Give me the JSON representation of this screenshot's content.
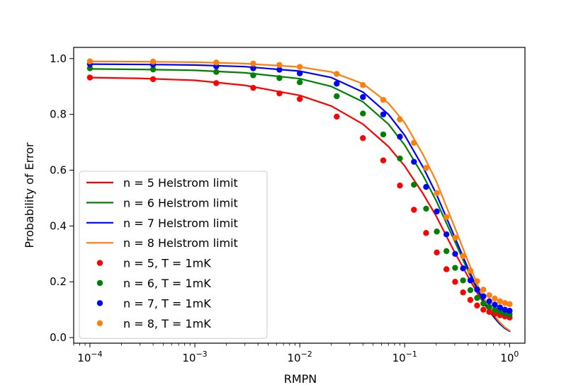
{
  "chart_data": {
    "type": "line",
    "xlabel": "RMPN",
    "ylabel": "Probability of Error",
    "xscale": "log",
    "xlim": [
      7e-05,
      1.4
    ],
    "ylim": [
      -0.02,
      1.04
    ],
    "grid": false,
    "legend_position": "lower-left",
    "x_ticks": [
      {
        "value": 0.0001,
        "base": "10",
        "exp": "−4"
      },
      {
        "value": 0.001,
        "base": "10",
        "exp": "−3"
      },
      {
        "value": 0.01,
        "base": "10",
        "exp": "−2"
      },
      {
        "value": 0.1,
        "base": "10",
        "exp": "−1"
      },
      {
        "value": 1,
        "base": "10",
        "exp": "0"
      }
    ],
    "y_ticks": [
      {
        "value": 0.0,
        "label": "0.0"
      },
      {
        "value": 0.2,
        "label": "0.2"
      },
      {
        "value": 0.4,
        "label": "0.4"
      },
      {
        "value": 0.6,
        "label": "0.6"
      },
      {
        "value": 0.8,
        "label": "0.8"
      },
      {
        "value": 1.0,
        "label": "1.0"
      }
    ],
    "line_series": [
      {
        "name": "n = 5 Helstrom limit",
        "color": "#ff0000",
        "x": [
          0.0001,
          0.0003,
          0.001,
          0.003,
          0.01,
          0.02,
          0.04,
          0.07,
          0.1,
          0.15,
          0.2,
          0.3,
          0.4,
          0.5,
          0.6,
          0.7,
          0.8,
          0.9,
          1.0
        ],
        "y": [
          0.932,
          0.929,
          0.922,
          0.904,
          0.868,
          0.83,
          0.765,
          0.685,
          0.615,
          0.515,
          0.435,
          0.305,
          0.22,
          0.155,
          0.11,
          0.075,
          0.05,
          0.035,
          0.025
        ]
      },
      {
        "name": "n = 6 Helstrom limit",
        "color": "#008000",
        "x": [
          0.0001,
          0.0003,
          0.001,
          0.003,
          0.01,
          0.02,
          0.04,
          0.07,
          0.1,
          0.15,
          0.2,
          0.3,
          0.4,
          0.5,
          0.6,
          0.7,
          0.8,
          0.9,
          1.0
        ],
        "y": [
          0.963,
          0.961,
          0.958,
          0.949,
          0.928,
          0.9,
          0.845,
          0.765,
          0.69,
          0.58,
          0.49,
          0.345,
          0.24,
          0.165,
          0.11,
          0.075,
          0.05,
          0.033,
          0.023
        ]
      },
      {
        "name": "n = 7 Helstrom limit",
        "color": "#0000ff",
        "x": [
          0.0001,
          0.0003,
          0.001,
          0.003,
          0.01,
          0.02,
          0.04,
          0.07,
          0.1,
          0.15,
          0.2,
          0.3,
          0.4,
          0.5,
          0.6,
          0.7,
          0.8,
          0.9,
          1.0
        ],
        "y": [
          0.98,
          0.979,
          0.977,
          0.971,
          0.955,
          0.932,
          0.88,
          0.8,
          0.725,
          0.61,
          0.515,
          0.36,
          0.25,
          0.17,
          0.115,
          0.078,
          0.052,
          0.034,
          0.023
        ]
      },
      {
        "name": "n = 8 Helstrom limit",
        "color": "#ff7f0e",
        "x": [
          0.0001,
          0.0003,
          0.001,
          0.003,
          0.01,
          0.02,
          0.04,
          0.07,
          0.1,
          0.15,
          0.2,
          0.3,
          0.4,
          0.5,
          0.6,
          0.7,
          0.8,
          0.9,
          1.0
        ],
        "y": [
          0.99,
          0.989,
          0.987,
          0.982,
          0.97,
          0.952,
          0.91,
          0.84,
          0.77,
          0.655,
          0.56,
          0.395,
          0.275,
          0.185,
          0.125,
          0.085,
          0.056,
          0.037,
          0.025
        ]
      }
    ],
    "scatter_series": [
      {
        "name": "n = 5, T = 1mK",
        "color": "#ff0000",
        "x": [
          0.0001,
          0.0004,
          0.0016,
          0.0036,
          0.0064,
          0.01,
          0.0225,
          0.04,
          0.0625,
          0.09,
          0.1225,
          0.16,
          0.2025,
          0.25,
          0.3025,
          0.36,
          0.4225,
          0.49,
          0.5625,
          0.64,
          0.7225,
          0.81,
          0.9025,
          1.0
        ],
        "y": [
          0.932,
          0.926,
          0.912,
          0.895,
          0.875,
          0.855,
          0.792,
          0.715,
          0.635,
          0.545,
          0.458,
          0.375,
          0.305,
          0.245,
          0.2,
          0.162,
          0.135,
          0.115,
          0.1,
          0.092,
          0.085,
          0.08,
          0.076,
          0.072
        ]
      },
      {
        "name": "n = 6, T = 1mK",
        "color": "#008000",
        "x": [
          0.0001,
          0.0004,
          0.0016,
          0.0036,
          0.0064,
          0.01,
          0.0225,
          0.04,
          0.0625,
          0.09,
          0.1225,
          0.16,
          0.2025,
          0.25,
          0.3025,
          0.36,
          0.4225,
          0.49,
          0.5625,
          0.64,
          0.7225,
          0.81,
          0.9025,
          1.0
        ],
        "y": [
          0.965,
          0.961,
          0.952,
          0.94,
          0.93,
          0.915,
          0.865,
          0.803,
          0.728,
          0.642,
          0.548,
          0.462,
          0.38,
          0.31,
          0.25,
          0.205,
          0.17,
          0.142,
          0.122,
          0.11,
          0.1,
          0.093,
          0.087,
          0.083
        ]
      },
      {
        "name": "n = 7, T = 1mK",
        "color": "#0000ff",
        "x": [
          0.0001,
          0.0004,
          0.0016,
          0.0036,
          0.0064,
          0.01,
          0.0225,
          0.04,
          0.0625,
          0.09,
          0.1225,
          0.16,
          0.2025,
          0.25,
          0.3025,
          0.36,
          0.4225,
          0.49,
          0.5625,
          0.64,
          0.7225,
          0.81,
          0.9025,
          1.0
        ],
        "y": [
          0.98,
          0.978,
          0.972,
          0.965,
          0.96,
          0.947,
          0.91,
          0.862,
          0.8,
          0.72,
          0.63,
          0.54,
          0.452,
          0.37,
          0.3,
          0.248,
          0.205,
          0.172,
          0.148,
          0.13,
          0.118,
          0.108,
          0.1,
          0.096
        ]
      },
      {
        "name": "n = 8, T = 1mK",
        "color": "#ff7f0e",
        "x": [
          0.0001,
          0.0004,
          0.0016,
          0.0036,
          0.0064,
          0.01,
          0.0225,
          0.04,
          0.0625,
          0.09,
          0.1225,
          0.16,
          0.2025,
          0.25,
          0.3025,
          0.36,
          0.4225,
          0.49,
          0.5625,
          0.64,
          0.7225,
          0.81,
          0.9025,
          1.0
        ],
        "y": [
          0.99,
          0.989,
          0.986,
          0.982,
          0.977,
          0.97,
          0.945,
          0.905,
          0.852,
          0.782,
          0.698,
          0.608,
          0.518,
          0.432,
          0.358,
          0.292,
          0.24,
          0.202,
          0.172,
          0.152,
          0.14,
          0.13,
          0.124,
          0.12
        ]
      }
    ]
  }
}
